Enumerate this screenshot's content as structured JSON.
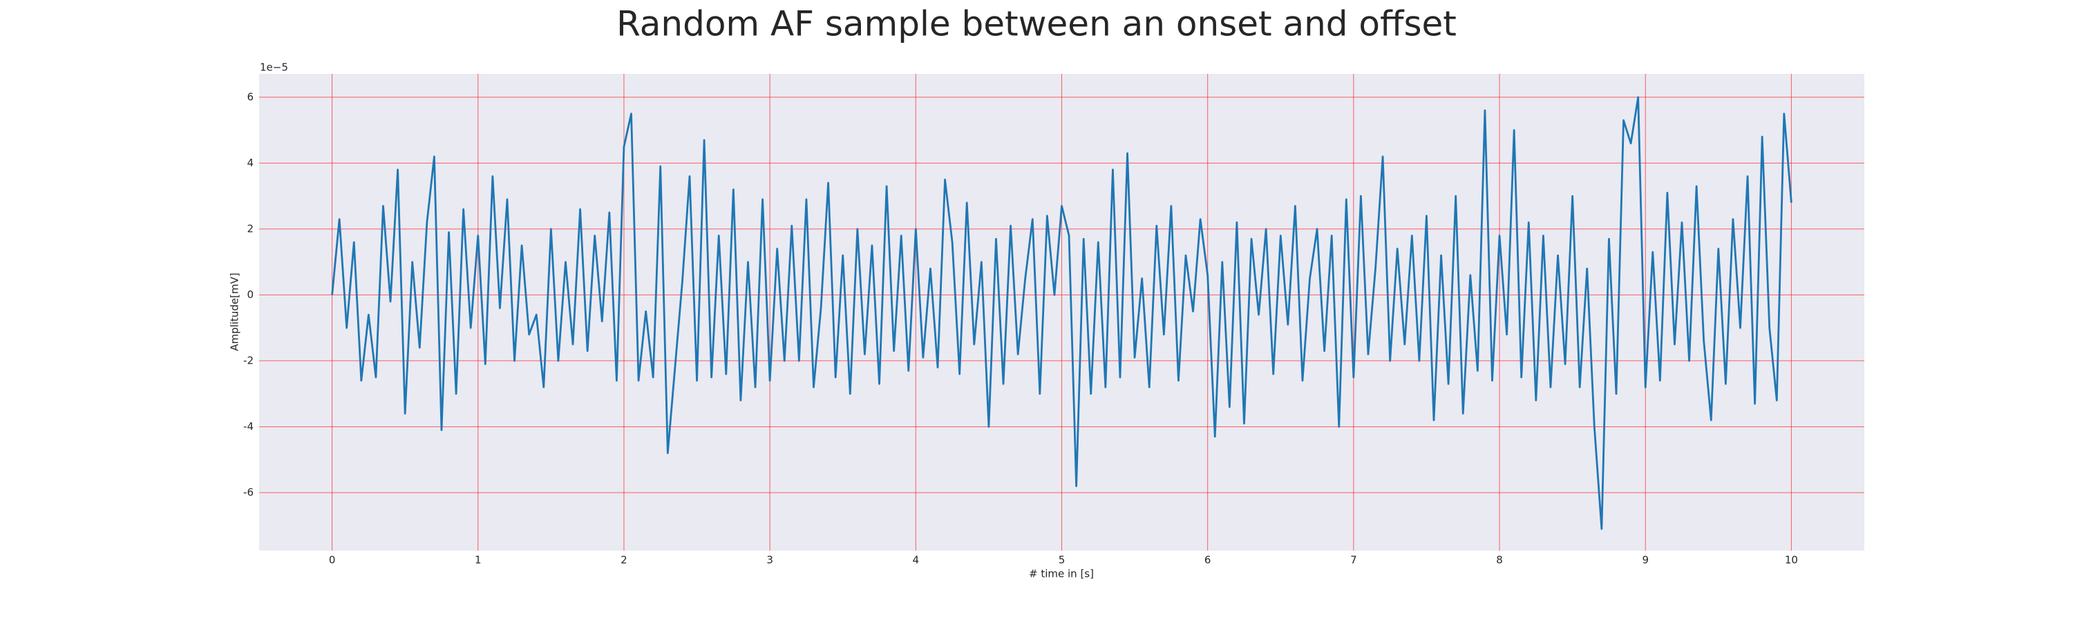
{
  "chart_data": {
    "type": "line",
    "title": "Random AF sample between an onset and offset",
    "xlabel": "# time in [s]",
    "ylabel": "Amplitude[mV]",
    "y_offset_label": "1e−5",
    "xlim": [
      -0.5,
      10.5
    ],
    "ylim": [
      -7.76,
      6.71
    ],
    "xticks": [
      0,
      1,
      2,
      3,
      4,
      5,
      6,
      7,
      8,
      9,
      10
    ],
    "yticks": [
      -6,
      -4,
      -2,
      0,
      2,
      4,
      6
    ],
    "grid": true,
    "grid_color": "#ff0000",
    "background": "#eaeaf2",
    "x": [
      0,
      0.05,
      0.1,
      0.15,
      0.2,
      0.25,
      0.3,
      0.35,
      0.4,
      0.45,
      0.5,
      0.55,
      0.6,
      0.65,
      0.7,
      0.75,
      0.8,
      0.85,
      0.9,
      0.95,
      1,
      1.05,
      1.1,
      1.15,
      1.2,
      1.25,
      1.3,
      1.35,
      1.4,
      1.45,
      1.5,
      1.55,
      1.6,
      1.65,
      1.7,
      1.75,
      1.8,
      1.85,
      1.9,
      1.95,
      2,
      2.05,
      2.1,
      2.15,
      2.2,
      2.25,
      2.3,
      2.35,
      2.4,
      2.45,
      2.5,
      2.55,
      2.6,
      2.65,
      2.7,
      2.75,
      2.8,
      2.85,
      2.9,
      2.95,
      3,
      3.05,
      3.1,
      3.15,
      3.2,
      3.25,
      3.3,
      3.35,
      3.4,
      3.45,
      3.5,
      3.55,
      3.6,
      3.65,
      3.7,
      3.75,
      3.8,
      3.85,
      3.9,
      3.95,
      4,
      4.05,
      4.1,
      4.15,
      4.2,
      4.25,
      4.3,
      4.35,
      4.4,
      4.45,
      4.5,
      4.55,
      4.6,
      4.65,
      4.7,
      4.75,
      4.8,
      4.85,
      4.9,
      4.95,
      5,
      5.05,
      5.1,
      5.15,
      5.2,
      5.25,
      5.3,
      5.35,
      5.4,
      5.45,
      5.5,
      5.55,
      5.6,
      5.65,
      5.7,
      5.75,
      5.8,
      5.85,
      5.9,
      5.95,
      6,
      6.05,
      6.1,
      6.15,
      6.2,
      6.25,
      6.3,
      6.35,
      6.4,
      6.45,
      6.5,
      6.55,
      6.6,
      6.65,
      6.7,
      6.75,
      6.8,
      6.85,
      6.9,
      6.95,
      7,
      7.05,
      7.1,
      7.15,
      7.2,
      7.25,
      7.3,
      7.35,
      7.4,
      7.45,
      7.5,
      7.55,
      7.6,
      7.65,
      7.7,
      7.75,
      7.8,
      7.85,
      7.9,
      7.95,
      8,
      8.05,
      8.1,
      8.15,
      8.2,
      8.25,
      8.3,
      8.35,
      8.4,
      8.45,
      8.5,
      8.55,
      8.6,
      8.65,
      8.7,
      8.75,
      8.8,
      8.85,
      8.9,
      8.95,
      9,
      9.05,
      9.1,
      9.15,
      9.2,
      9.25,
      9.3,
      9.35,
      9.4,
      9.45,
      9.5,
      9.55,
      9.6,
      9.65,
      9.7,
      9.75,
      9.8,
      9.85,
      9.9,
      9.95,
      10
    ],
    "series": [
      {
        "color": "#1f77b4",
        "values": [
          0,
          2.3,
          -1.0,
          1.6,
          -2.6,
          -0.6,
          -2.5,
          2.7,
          -0.2,
          3.8,
          -3.6,
          1.0,
          -1.6,
          2.2,
          4.2,
          -4.1,
          1.9,
          -3.0,
          2.6,
          -1.0,
          1.8,
          -2.1,
          3.6,
          -0.4,
          2.9,
          -2.0,
          1.5,
          -1.2,
          -0.6,
          -2.8,
          2.0,
          -2.0,
          1.0,
          -1.5,
          2.6,
          -1.7,
          1.8,
          -0.8,
          2.5,
          -2.6,
          4.5,
          5.5,
          -2.6,
          -0.5,
          -2.5,
          3.9,
          -4.8,
          -2.2,
          0.4,
          3.6,
          -2.6,
          4.7,
          -2.5,
          1.8,
          -2.4,
          3.2,
          -3.2,
          1.0,
          -2.8,
          2.9,
          -2.6,
          1.4,
          -2.0,
          2.1,
          -2.0,
          2.9,
          -2.8,
          -0.4,
          3.4,
          -2.5,
          1.2,
          -3.0,
          2.0,
          -1.8,
          1.5,
          -2.7,
          3.3,
          -1.7,
          1.8,
          -2.3,
          2.0,
          -1.9,
          0.8,
          -2.2,
          3.5,
          1.6,
          -2.4,
          2.8,
          -1.5,
          1.0,
          -4.0,
          1.7,
          -2.7,
          2.1,
          -1.8,
          0.5,
          2.3,
          -3.0,
          2.4,
          0.0,
          2.7,
          1.8,
          -5.8,
          1.7,
          -3.0,
          1.6,
          -2.8,
          3.8,
          -2.5,
          4.3,
          -1.9,
          0.5,
          -2.8,
          2.1,
          -1.2,
          2.7,
          -2.6,
          1.2,
          -0.5,
          2.3,
          0.6,
          -4.3,
          1.0,
          -3.4,
          2.2,
          -3.9,
          1.7,
          -0.6,
          2.0,
          -2.4,
          1.8,
          -0.9,
          2.7,
          -2.6,
          0.5,
          2.0,
          -1.7,
          1.8,
          -4.0,
          2.9,
          -2.5,
          3.0,
          -1.8,
          0.8,
          4.2,
          -2.0,
          1.4,
          -1.5,
          1.8,
          -2.0,
          2.4,
          -3.8,
          1.2,
          -2.7,
          3.0,
          -3.6,
          0.6,
          -2.3,
          5.6,
          -2.6,
          1.8,
          -1.2,
          5.0,
          -2.5,
          2.2,
          -3.2,
          1.8,
          -2.8,
          1.2,
          -2.1,
          3.0,
          -2.8,
          0.8,
          -4.0,
          -7.1,
          1.7,
          -3.0,
          5.3,
          4.6,
          6.0,
          -2.8,
          1.3,
          -2.6,
          3.1,
          -1.5,
          2.2,
          -2.0,
          3.3,
          -1.4,
          -3.8,
          1.4,
          -2.7,
          2.3,
          -1.0,
          3.6,
          -3.3,
          4.8,
          -1.0,
          -3.2,
          5.5,
          2.8
        ]
      }
    ]
  }
}
